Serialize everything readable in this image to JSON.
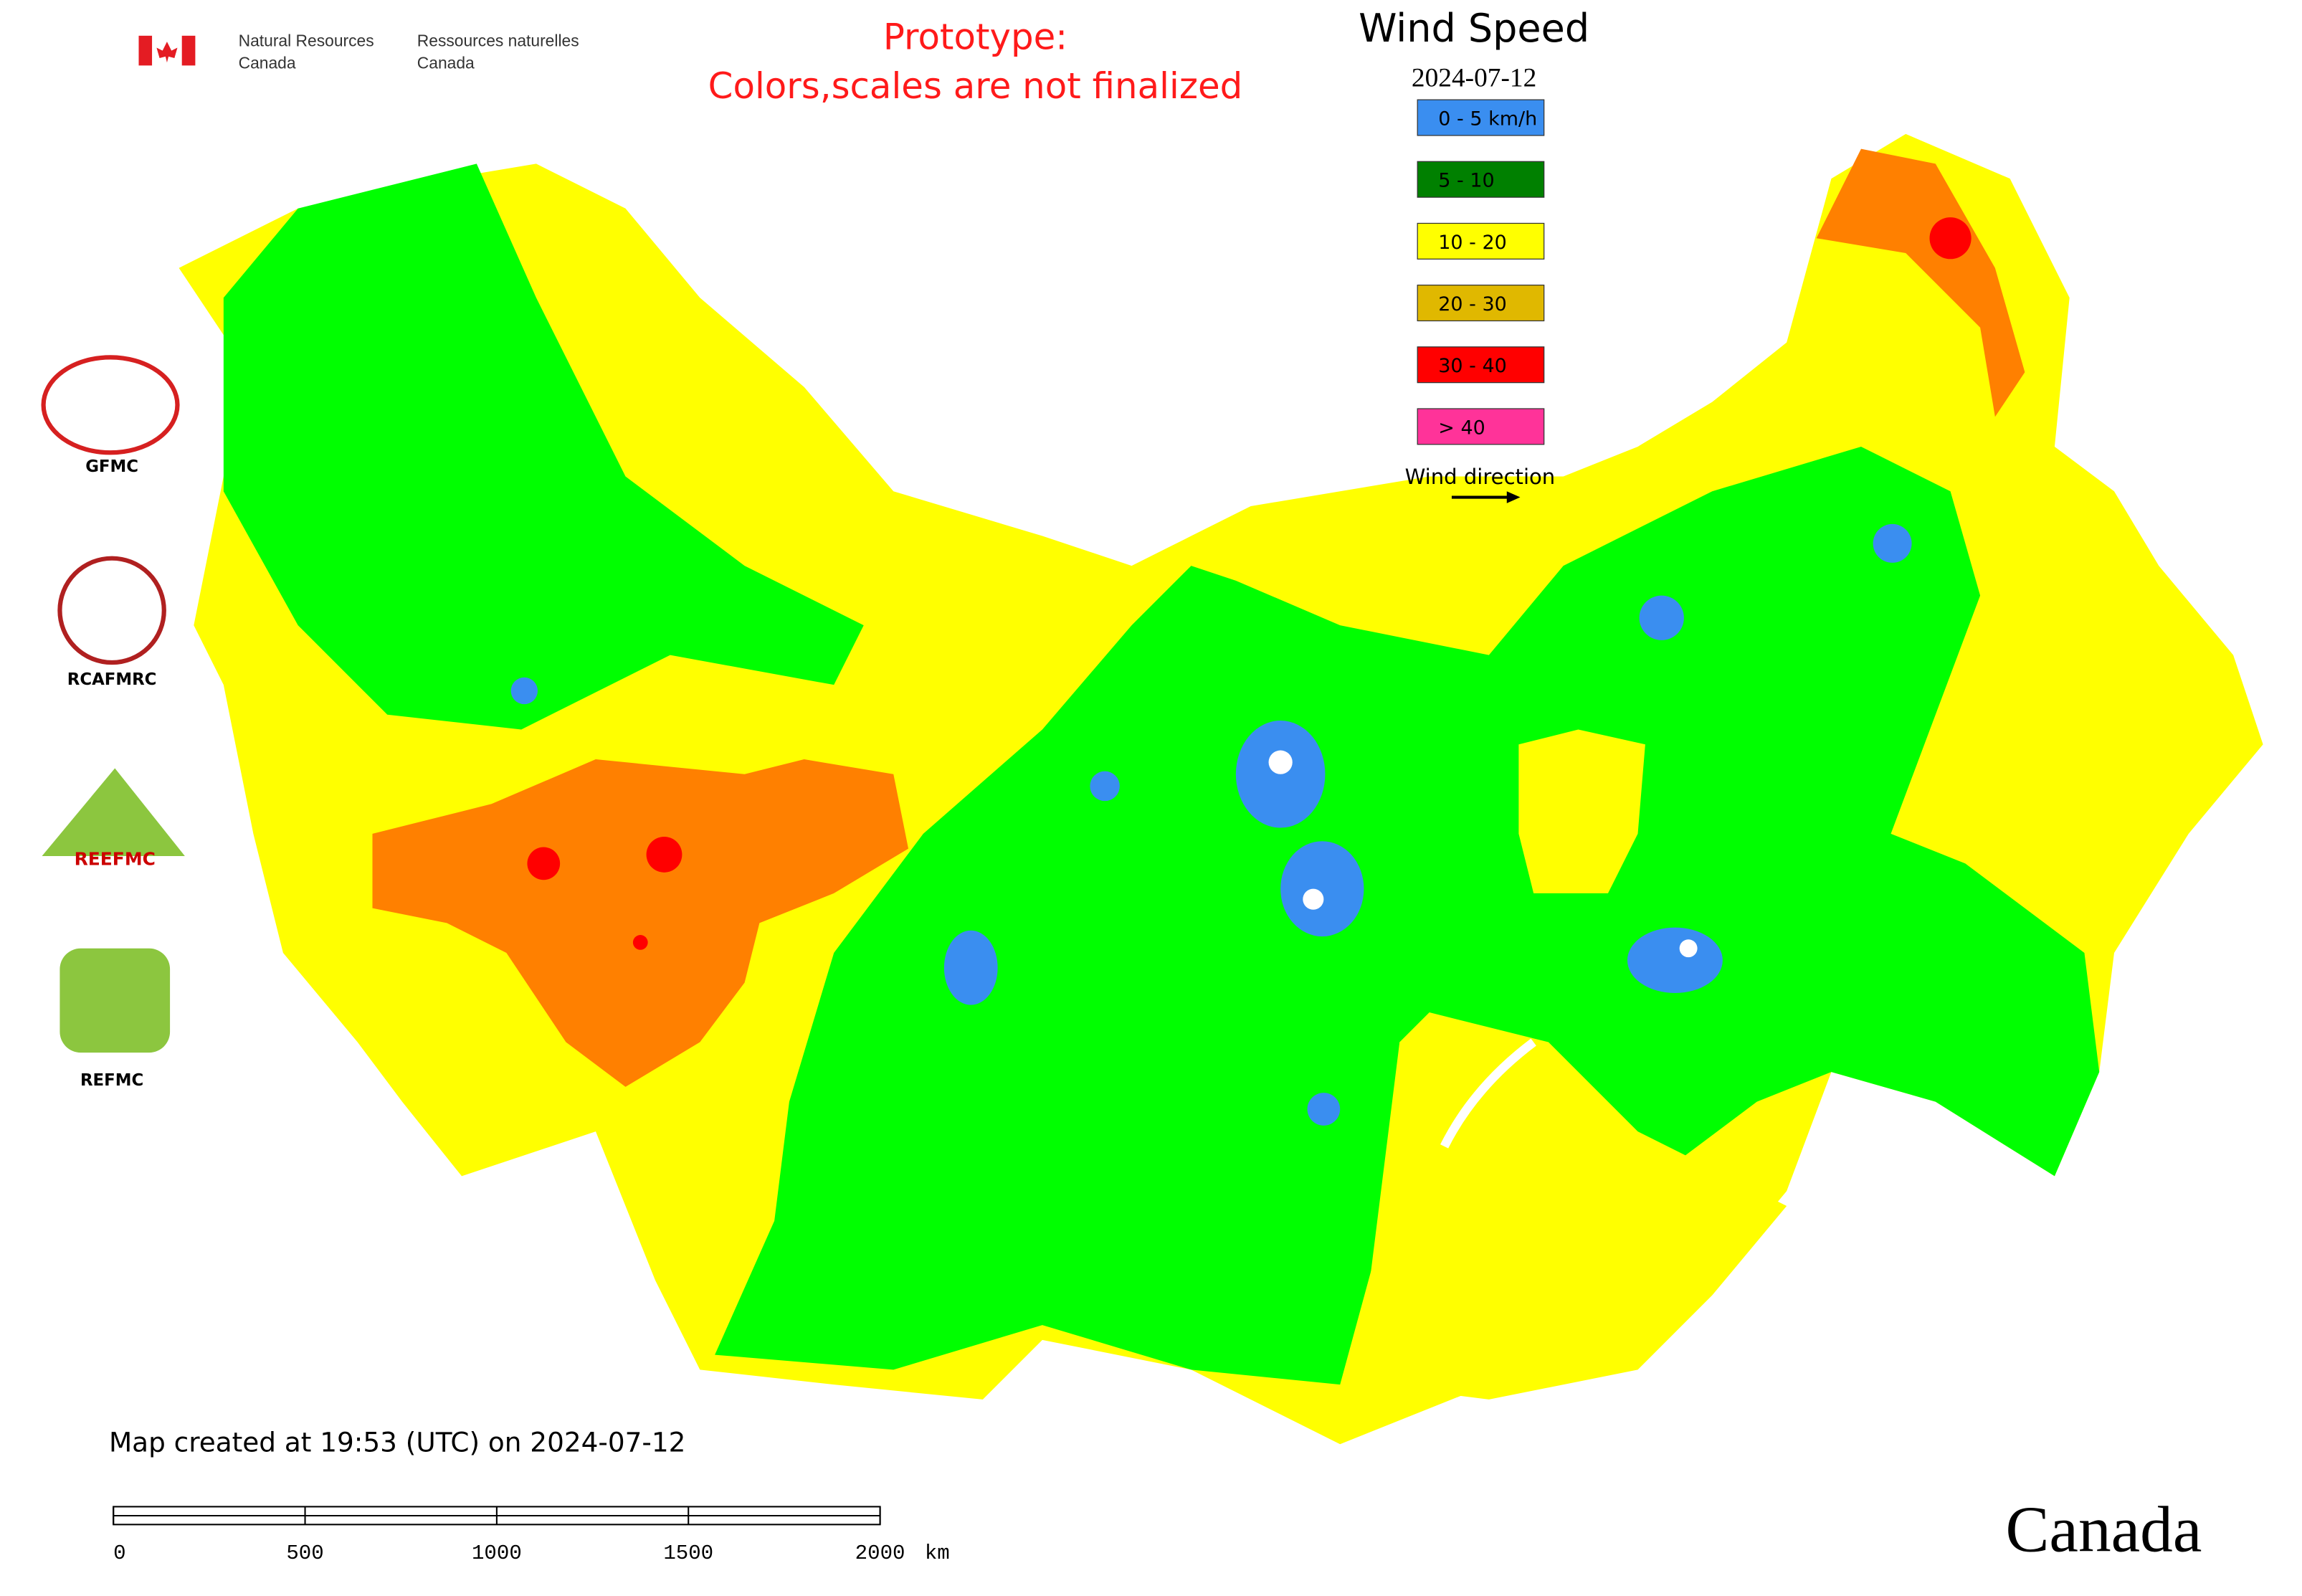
{
  "header": {
    "nrcan_en": [
      "Natural Resources",
      "Canada"
    ],
    "nrcan_fr": [
      "Ressources naturelles",
      "Canada"
    ],
    "prototype_notice": [
      "Prototype:",
      "Colors,scales are not finalized"
    ]
  },
  "legend": {
    "title": "Wind Speed",
    "date": "2024-07-12",
    "items": [
      {
        "label": "0 - 5 km/h",
        "color": "#3a8ef0"
      },
      {
        "label": "5 - 10",
        "color": "#008000"
      },
      {
        "label": "10 - 20",
        "color": "#ffff00"
      },
      {
        "label": "20 - 30",
        "color": "#e0b800"
      },
      {
        "label": "30 - 40",
        "color": "#ff0000"
      },
      {
        "label": "> 40",
        "color": "#ff3399"
      }
    ],
    "wind_direction": "Wind direction"
  },
  "logos": [
    "GFMC",
    "RCAFMRC",
    "REEFMC",
    "REFMC"
  ],
  "footer": {
    "created": "Map created at 19:53 (UTC) on 2024-07-12",
    "scale": {
      "ticks": [
        0,
        500,
        1000,
        1500,
        2000
      ],
      "unit": "km"
    },
    "wordmark": "Canada"
  }
}
